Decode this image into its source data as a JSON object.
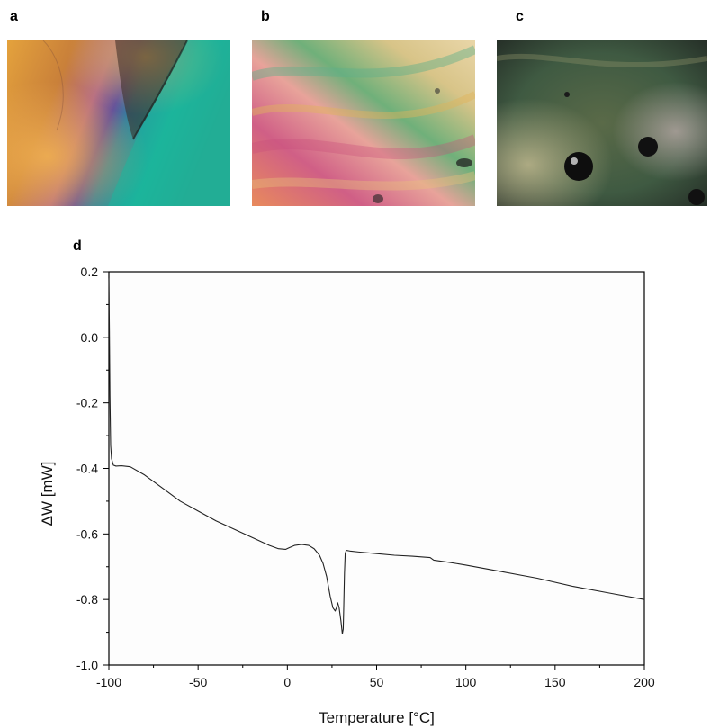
{
  "panels": [
    {
      "letter": "a",
      "kind": "micrograph"
    },
    {
      "letter": "b",
      "kind": "micrograph"
    },
    {
      "letter": "c",
      "kind": "micrograph"
    },
    {
      "letter": "d",
      "kind": "chart"
    }
  ],
  "colors": {
    "curve": "#222222",
    "axes": "#000000",
    "plot_background": "#fdfdfd",
    "micrograph_a": [
      "#e4a23c",
      "#b46a86",
      "#5a4aa0",
      "#18b59a"
    ],
    "micrograph_b": [
      "#e8a39a",
      "#d05f86",
      "#6fb07a",
      "#d8c488"
    ],
    "micrograph_c": [
      "#5a6a48",
      "#3f5a42",
      "#8a8e66",
      "#263028"
    ]
  },
  "chart_data": {
    "type": "line",
    "title": "",
    "xlabel": "Temperature [°C]",
    "ylabel": "ΔW [mW]",
    "xlim": [
      -100,
      200
    ],
    "ylim": [
      -1.0,
      0.2
    ],
    "xticks": [
      -100,
      -50,
      0,
      50,
      100,
      150,
      200
    ],
    "xtick_labels": [
      "-100",
      "-50",
      "0",
      "50",
      "100",
      "150",
      "200"
    ],
    "yticks": [
      -1.0,
      -0.8,
      -0.6,
      -0.4,
      -0.2,
      0.0,
      0.2
    ],
    "ytick_labels": [
      "-1.0",
      "-0.8",
      "-0.6",
      "-0.4",
      "-0.2",
      "0.0",
      "0.2"
    ],
    "grid": false,
    "series": [
      {
        "x": [
          -100.0,
          -99.7,
          -99.4,
          -99.0,
          -98.5,
          -97.5,
          -96.0,
          -93.0,
          -88.0,
          -80.0,
          -70.0,
          -60.0,
          -50.0,
          -40.0,
          -30.0,
          -20.0,
          -10.0,
          -5.0,
          -1.0,
          1.0,
          4.0,
          8.0,
          12.0,
          15.0,
          18.0,
          20.0,
          22.0,
          24.0,
          25.5,
          26.8,
          27.5,
          28.2,
          29.0,
          30.0,
          30.8,
          31.3,
          31.6,
          32.0,
          32.4,
          33.0,
          35.0,
          40.0,
          50.0,
          60.0,
          70.0,
          80.0,
          82.0,
          90.0,
          100.0,
          120.0,
          140.0,
          160.0,
          180.0,
          200.0
        ],
        "y": [
          0.18,
          0.02,
          -0.18,
          -0.33,
          -0.37,
          -0.39,
          -0.393,
          -0.392,
          -0.395,
          -0.42,
          -0.46,
          -0.5,
          -0.53,
          -0.56,
          -0.585,
          -0.61,
          -0.635,
          -0.645,
          -0.647,
          -0.642,
          -0.635,
          -0.632,
          -0.635,
          -0.645,
          -0.665,
          -0.69,
          -0.73,
          -0.79,
          -0.825,
          -0.835,
          -0.825,
          -0.81,
          -0.825,
          -0.865,
          -0.905,
          -0.89,
          -0.82,
          -0.72,
          -0.66,
          -0.65,
          -0.652,
          -0.655,
          -0.66,
          -0.665,
          -0.668,
          -0.672,
          -0.68,
          -0.686,
          -0.695,
          -0.715,
          -0.735,
          -0.76,
          -0.78,
          -0.8
        ]
      }
    ]
  }
}
